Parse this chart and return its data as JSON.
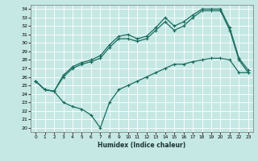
{
  "xlabel": "Humidex (Indice chaleur)",
  "xlim": [
    -0.5,
    23.5
  ],
  "ylim": [
    19.5,
    34.5
  ],
  "xticks": [
    0,
    1,
    2,
    3,
    4,
    5,
    6,
    7,
    8,
    9,
    10,
    11,
    12,
    13,
    14,
    15,
    16,
    17,
    18,
    19,
    20,
    21,
    22,
    23
  ],
  "yticks": [
    20,
    21,
    22,
    23,
    24,
    25,
    26,
    27,
    28,
    29,
    30,
    31,
    32,
    33,
    34
  ],
  "bg_color": "#c5e8e4",
  "line_color": "#1a6b5e",
  "line1_x": [
    0,
    1,
    2,
    3,
    4,
    5,
    6,
    7,
    8,
    9,
    10,
    11,
    12,
    13,
    14,
    15,
    16,
    17,
    18,
    19,
    20,
    21,
    22,
    23
  ],
  "line1_y": [
    25.5,
    24.5,
    24.3,
    26.0,
    27.0,
    27.5,
    27.8,
    28.2,
    29.5,
    30.5,
    30.5,
    30.2,
    30.5,
    31.5,
    32.5,
    31.5,
    32.0,
    33.0,
    33.8,
    33.8,
    33.8,
    31.5,
    28.0,
    26.5
  ],
  "line2_x": [
    0,
    1,
    2,
    3,
    4,
    5,
    6,
    7,
    8,
    9,
    10,
    11,
    12,
    13,
    14,
    15,
    16,
    17,
    18,
    19,
    20,
    21,
    22,
    23
  ],
  "line2_y": [
    25.5,
    24.5,
    24.3,
    26.2,
    27.2,
    27.7,
    28.0,
    28.5,
    29.8,
    30.8,
    31.0,
    30.5,
    30.8,
    31.8,
    33.0,
    32.0,
    32.5,
    33.3,
    34.0,
    34.0,
    34.0,
    31.8,
    28.2,
    26.8
  ],
  "line3_x": [
    0,
    1,
    2,
    3,
    4,
    5,
    6,
    7,
    8,
    9,
    10,
    11,
    12,
    13,
    14,
    15,
    16,
    17,
    18,
    19,
    20,
    21,
    22,
    23
  ],
  "line3_y": [
    25.5,
    24.5,
    24.3,
    23.0,
    22.5,
    22.2,
    21.5,
    20.0,
    23.0,
    24.5,
    25.0,
    25.5,
    26.0,
    26.5,
    27.0,
    27.5,
    27.5,
    27.8,
    28.0,
    28.2,
    28.2,
    28.0,
    26.5,
    26.5
  ]
}
